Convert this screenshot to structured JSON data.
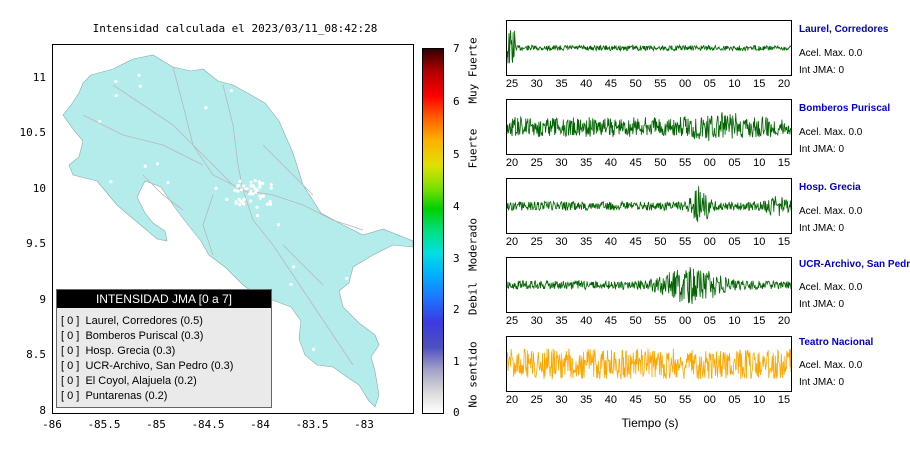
{
  "map": {
    "title": "Intensidad calculada el 2023/03/11_08:42:28",
    "y_ticks": [
      "11",
      "10.5",
      "10",
      "9.5",
      "9",
      "8.5",
      "8"
    ],
    "x_ticks": [
      "-86",
      "-85.5",
      "-85",
      "-84.5",
      "-84",
      "-83.5",
      "-83"
    ],
    "land_color": "#b4ecec",
    "road_color": "#b8b8b8"
  },
  "legend": {
    "title": "INTENSIDAD JMA [0 a 7]",
    "items": [
      {
        "level": "[ 0 ]",
        "name": "Laurel, Corredores (0.5)"
      },
      {
        "level": "[ 0 ]",
        "name": "Bomberos Puriscal (0.3)"
      },
      {
        "level": "[ 0 ]",
        "name": "Hosp. Grecia (0.3)"
      },
      {
        "level": "[ 0 ]",
        "name": "UCR-Archivo, San Pedro (0.3)"
      },
      {
        "level": "[ 0 ]",
        "name": "El Coyol, Alajuela (0.2)"
      },
      {
        "level": "[ 0 ]",
        "name": "Puntarenas (0.2)"
      }
    ]
  },
  "colorbar": {
    "numbers": [
      "7",
      "6",
      "5",
      "4",
      "3",
      "2",
      "1",
      "0"
    ],
    "words": [
      "Muy Fuerte",
      "Fuerte",
      "Moderado",
      "Debil",
      "No sentido"
    ]
  },
  "stations": [
    {
      "name": "Laurel, Corredores",
      "accel": "Acel. Max. 0.0",
      "int": "Int JMA: 0",
      "color": "#006400",
      "ticks": [
        "25",
        "30",
        "35",
        "40",
        "45",
        "50",
        "55",
        "00",
        "05",
        "10",
        "15",
        "20"
      ]
    },
    {
      "name": "Bomberos Puriscal",
      "accel": "Acel. Max. 0.0",
      "int": "Int JMA: 0",
      "color": "#006400",
      "ticks": [
        "20",
        "25",
        "30",
        "35",
        "40",
        "45",
        "50",
        "55",
        "00",
        "05",
        "10",
        "15"
      ]
    },
    {
      "name": "Hosp. Grecia",
      "accel": "Acel. Max. 0.0",
      "int": "Int JMA: 0",
      "color": "#006400",
      "ticks": [
        "20",
        "25",
        "30",
        "35",
        "40",
        "45",
        "50",
        "55",
        "00",
        "05",
        "10",
        "15"
      ]
    },
    {
      "name": "UCR-Archivo, San Pedro",
      "accel": "Acel. Max. 0.0",
      "int": "Int JMA: 0",
      "color": "#006400",
      "ticks": [
        "25",
        "30",
        "35",
        "40",
        "45",
        "50",
        "55",
        "00",
        "05",
        "10",
        "15",
        "20"
      ]
    },
    {
      "name": "Teatro Nacional",
      "accel": "Acel. Max. 0.0",
      "int": "Int JMA: 0",
      "color": "#ffa500",
      "ticks": [
        "20",
        "25",
        "30",
        "35",
        "40",
        "45",
        "50",
        "55",
        "00",
        "05",
        "10",
        "15"
      ]
    }
  ],
  "waveforms_xlabel": "Tiempo (s)"
}
